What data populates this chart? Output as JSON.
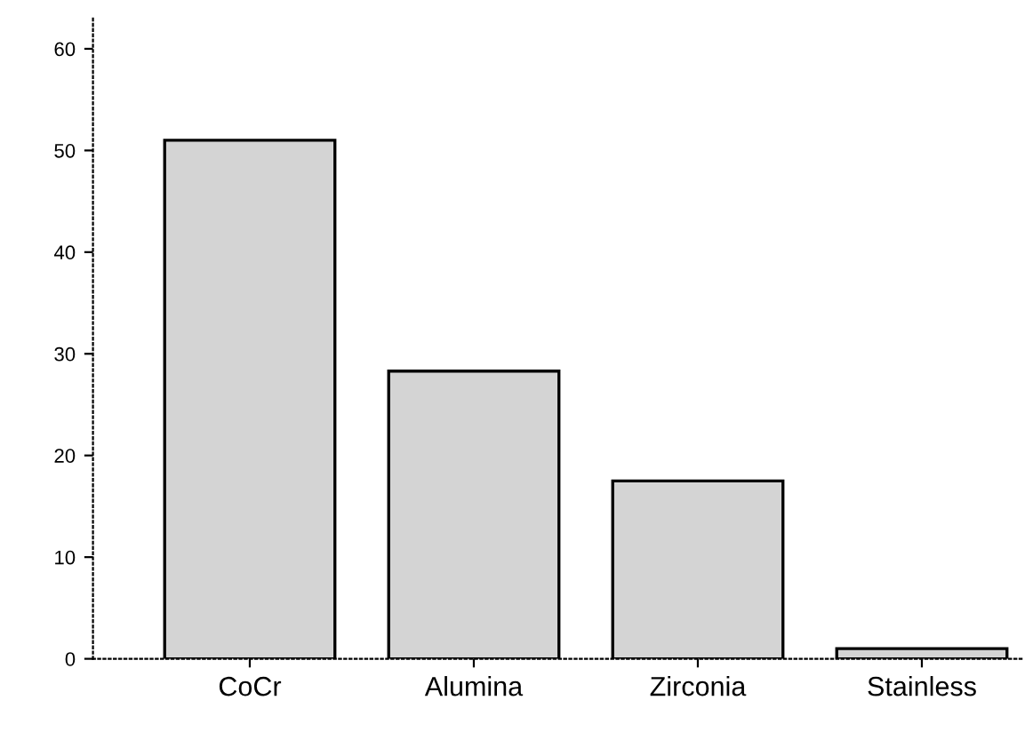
{
  "chart_data": {
    "type": "bar",
    "categories": [
      "CoCr",
      "Alumina",
      "Zirconia",
      "Stainless"
    ],
    "values": [
      51,
      28.3,
      17.5,
      1
    ],
    "color": "#d4d4d4",
    "ylim": [
      0,
      63
    ],
    "yticks": [
      0,
      10,
      20,
      30,
      40,
      50,
      60
    ],
    "grid": false,
    "legend": false
  }
}
